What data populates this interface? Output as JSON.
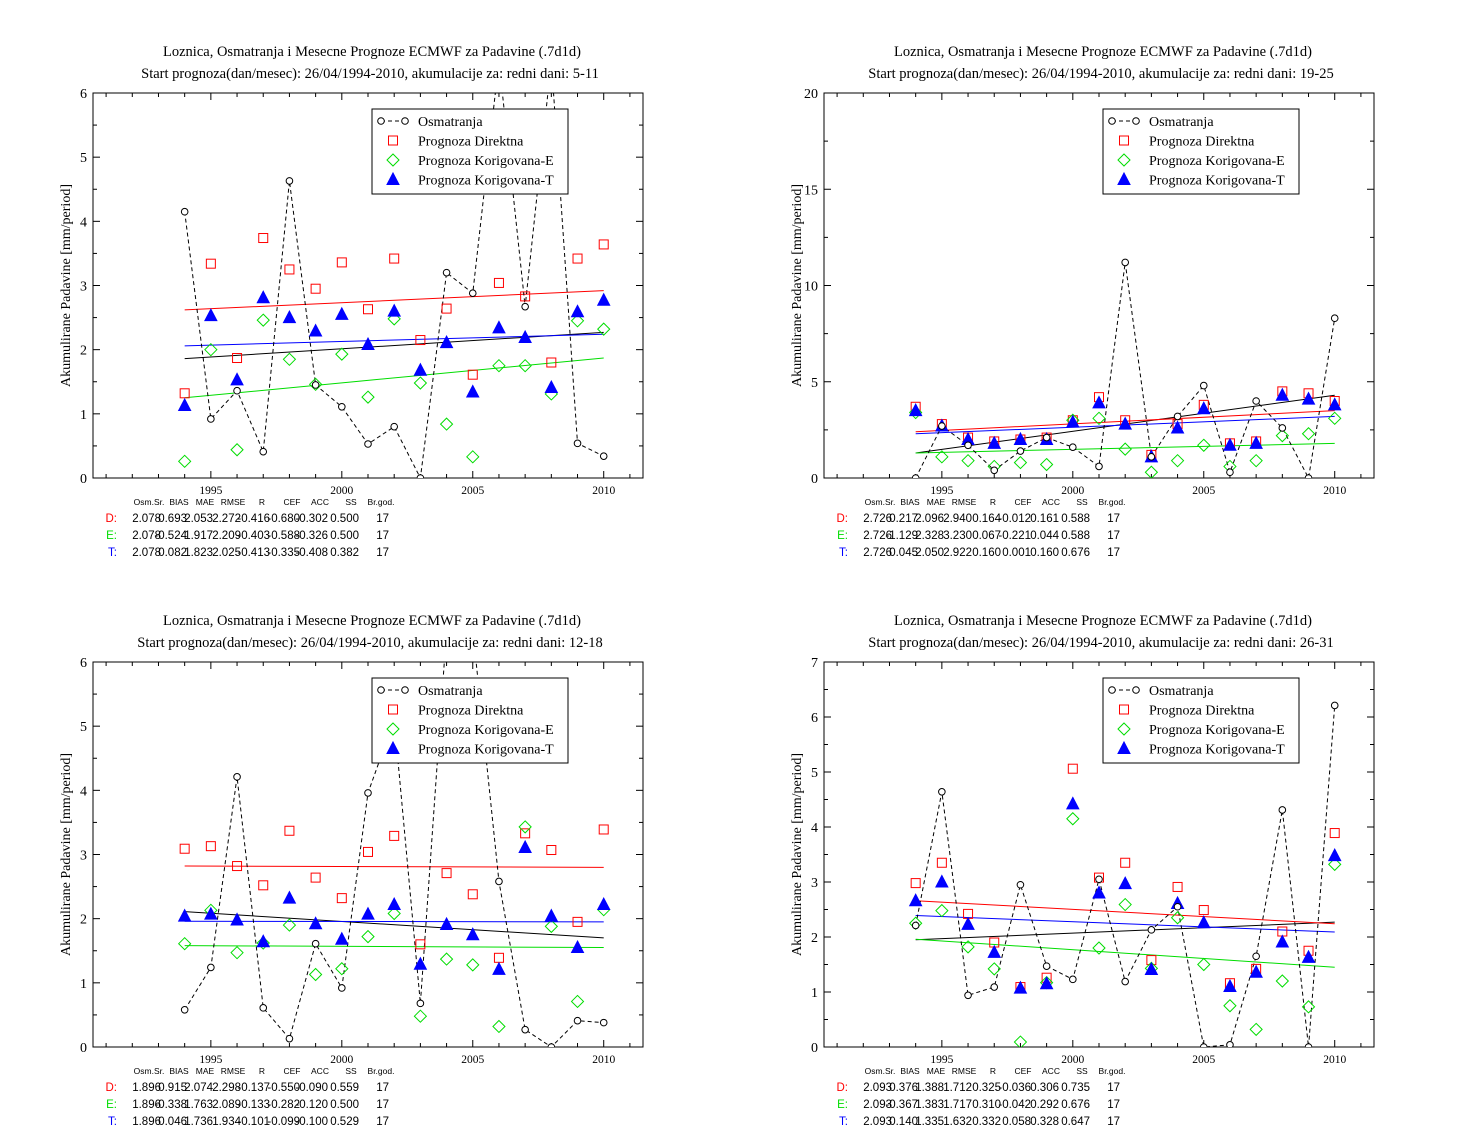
{
  "legend": {
    "obs": "Osmatranja",
    "direct": "Prognoza Direktna",
    "corrE": "Prognoza Korigovana-E",
    "corrT": "Prognoza Korigovana-T"
  },
  "colors": {
    "obs": "#000000",
    "direct": "#ff0000",
    "corrE": "#00dd00",
    "corrT": "#0000ff"
  },
  "stats_headers": [
    "Osm.Sr.",
    "BIAS",
    "MAE",
    "RMSE",
    "R",
    "CEF",
    "ACC",
    "SS",
    "Br.god."
  ],
  "chart_data": [
    {
      "type": "scatter",
      "title": "Loznica, Osmatranja i Mesecne Prognoze ECMWF za Padavine (.7d1d)",
      "subtitle": "Start prognoza(dan/mesec): 26/04/1994-2010, akumulacije za: redni dani: 5-11",
      "ylabel": "Akumulirane Padavine [mm/period]",
      "xlim": [
        1990.5,
        2011.5
      ],
      "ylim": [
        0,
        6
      ],
      "xticks": [
        1995,
        2000,
        2005,
        2010
      ],
      "yticks": [
        0,
        1,
        2,
        3,
        4,
        5,
        6
      ],
      "legend_position": "top-right",
      "x": [
        1994,
        1995,
        1996,
        1997,
        1998,
        1999,
        2000,
        2001,
        2002,
        2003,
        2004,
        2005,
        2006,
        2007,
        2008,
        2009,
        2010
      ],
      "series": [
        {
          "name": "Osmatranja",
          "key": "obs",
          "values": [
            4.15,
            0.92,
            1.36,
            0.41,
            4.63,
            1.45,
            1.11,
            0.53,
            0.8,
            0.0,
            3.2,
            2.88,
            6.5,
            2.67,
            6.5,
            0.54,
            0.34
          ]
        },
        {
          "name": "Prognoza Direktna",
          "key": "direct",
          "values": [
            1.32,
            3.34,
            1.87,
            3.74,
            3.25,
            2.95,
            3.36,
            2.63,
            3.42,
            2.15,
            2.64,
            1.61,
            3.04,
            2.83,
            1.8,
            3.42,
            3.64
          ]
        },
        {
          "name": "Prognoza Korigovana-E",
          "key": "corrE",
          "values": [
            0.26,
            2.0,
            0.44,
            2.46,
            1.85,
            1.46,
            1.93,
            1.26,
            2.48,
            1.48,
            0.84,
            0.33,
            1.75,
            1.75,
            1.31,
            2.45,
            2.32
          ]
        },
        {
          "name": "Prognoza Korigovana-T",
          "key": "corrT",
          "values": [
            1.13,
            2.53,
            1.53,
            2.81,
            2.5,
            2.29,
            2.55,
            2.08,
            2.6,
            1.68,
            2.11,
            1.34,
            2.34,
            2.19,
            1.41,
            2.59,
            2.77
          ]
        }
      ],
      "trends": [
        {
          "key": "obs",
          "y": [
            1.86,
            2.27
          ]
        },
        {
          "key": "direct",
          "y": [
            2.62,
            2.92
          ]
        },
        {
          "key": "corrE",
          "y": [
            1.25,
            1.87
          ]
        },
        {
          "key": "corrT",
          "y": [
            2.06,
            2.24
          ]
        }
      ],
      "stats": [
        {
          "label": "D:",
          "key": "direct",
          "values": [
            "2.078",
            "0.693",
            "2.053",
            "2.272",
            "-0.416",
            "-0.680",
            "-0.302",
            "0.500",
            "17"
          ]
        },
        {
          "label": "E:",
          "key": "corrE",
          "values": [
            "2.078",
            "-0.524",
            "1.917",
            "2.209",
            "-0.403",
            "-0.588",
            "-0.326",
            "0.500",
            "17"
          ]
        },
        {
          "label": "T:",
          "key": "corrT",
          "values": [
            "2.078",
            "0.082",
            "1.823",
            "2.025",
            "-0.413",
            "-0.335",
            "-0.408",
            "0.382",
            "17"
          ]
        }
      ]
    },
    {
      "type": "scatter",
      "title": "Loznica, Osmatranja i Mesecne Prognoze ECMWF za Padavine (.7d1d)",
      "subtitle": "Start prognoza(dan/mesec): 26/04/1994-2010, akumulacije za: redni dani: 19-25",
      "ylabel": "Akumulirane Padavine [mm/period]",
      "xlim": [
        1990.5,
        2011.5
      ],
      "ylim": [
        0,
        20
      ],
      "xticks": [
        1995,
        2000,
        2005,
        2010
      ],
      "yticks": [
        0,
        5,
        10,
        15,
        20
      ],
      "legend_position": "top-right",
      "x": [
        1994,
        1995,
        1996,
        1997,
        1998,
        1999,
        2000,
        2001,
        2002,
        2003,
        2004,
        2005,
        2006,
        2007,
        2008,
        2009,
        2010
      ],
      "series": [
        {
          "name": "Osmatranja",
          "key": "obs",
          "values": [
            0.0,
            2.7,
            1.7,
            0.4,
            1.4,
            2.1,
            1.6,
            0.6,
            11.2,
            1.1,
            3.2,
            4.8,
            0.3,
            4.0,
            2.6,
            0.0,
            8.3
          ]
        },
        {
          "name": "Prognoza Direktna",
          "key": "direct",
          "values": [
            3.7,
            2.8,
            2.1,
            1.9,
            2.0,
            2.1,
            3.0,
            4.2,
            3.0,
            1.2,
            2.8,
            3.8,
            1.8,
            1.9,
            4.5,
            4.4,
            4.0
          ]
        },
        {
          "name": "Prognoza Korigovana-E",
          "key": "corrE",
          "values": [
            3.4,
            1.1,
            0.9,
            0.6,
            0.8,
            0.7,
            3.0,
            3.1,
            1.5,
            0.3,
            0.9,
            1.7,
            0.6,
            0.9,
            2.2,
            2.3,
            3.1
          ]
        },
        {
          "name": "Prognoza Korigovana-T",
          "key": "corrT",
          "values": [
            3.5,
            2.7,
            2.0,
            1.8,
            2.0,
            2.0,
            2.9,
            3.9,
            2.8,
            1.1,
            2.6,
            3.6,
            1.7,
            1.8,
            4.3,
            4.1,
            3.8
          ]
        }
      ],
      "trends": [
        {
          "key": "obs",
          "y": [
            1.3,
            4.3
          ]
        },
        {
          "key": "direct",
          "y": [
            2.4,
            3.5
          ]
        },
        {
          "key": "corrE",
          "y": [
            1.3,
            1.8
          ]
        },
        {
          "key": "corrT",
          "y": [
            2.3,
            3.2
          ]
        }
      ],
      "stats": [
        {
          "label": "D:",
          "key": "direct",
          "values": [
            "2.726",
            "0.217",
            "2.096",
            "2.940",
            "0.164",
            "-0.012",
            "0.161",
            "0.588",
            "17"
          ]
        },
        {
          "label": "E:",
          "key": "corrE",
          "values": [
            "2.726",
            "-1.129",
            "2.328",
            "3.230",
            "0.067",
            "-0.221",
            "0.044",
            "0.588",
            "17"
          ]
        },
        {
          "label": "T:",
          "key": "corrT",
          "values": [
            "2.726",
            "0.045",
            "2.050",
            "2.922",
            "0.160",
            "0.001",
            "0.160",
            "0.676",
            "17"
          ]
        }
      ]
    },
    {
      "type": "scatter",
      "title": "Loznica, Osmatranja i Mesecne Prognoze ECMWF za Padavine (.7d1d)",
      "subtitle": "Start prognoza(dan/mesec): 26/04/1994-2010, akumulacije za: redni dani: 12-18",
      "ylabel": "Akumulirane Padavine [mm/period]",
      "xlim": [
        1990.5,
        2011.5
      ],
      "ylim": [
        0,
        6
      ],
      "xticks": [
        1995,
        2000,
        2005,
        2010
      ],
      "yticks": [
        0,
        1,
        2,
        3,
        4,
        5,
        6
      ],
      "legend_position": "top-right",
      "x": [
        1994,
        1995,
        1996,
        1997,
        1998,
        1999,
        2000,
        2001,
        2002,
        2003,
        2004,
        2005,
        2006,
        2007,
        2008,
        2009,
        2010
      ],
      "series": [
        {
          "name": "Osmatranja",
          "key": "obs",
          "values": [
            0.58,
            1.24,
            4.21,
            0.61,
            0.13,
            1.61,
            0.92,
            3.96,
            5.1,
            0.68,
            6.5,
            6.5,
            2.58,
            0.27,
            0.0,
            0.41,
            0.38
          ]
        },
        {
          "name": "Prognoza Direktna",
          "key": "direct",
          "values": [
            3.09,
            3.13,
            2.82,
            2.52,
            3.37,
            2.64,
            2.32,
            3.04,
            3.29,
            1.6,
            2.71,
            2.38,
            1.39,
            3.33,
            3.07,
            1.95,
            3.39
          ]
        },
        {
          "name": "Prognoza Korigovana-E",
          "key": "corrE",
          "values": [
            1.61,
            2.13,
            1.47,
            1.62,
            1.9,
            1.13,
            1.22,
            1.72,
            2.08,
            0.48,
            1.37,
            1.28,
            0.32,
            3.43,
            1.88,
            0.71,
            2.14
          ]
        },
        {
          "name": "Prognoza Korigovana-T",
          "key": "corrT",
          "values": [
            2.04,
            2.07,
            1.98,
            1.64,
            2.32,
            1.92,
            1.68,
            2.07,
            2.22,
            1.29,
            1.91,
            1.75,
            1.21,
            3.11,
            2.04,
            1.55,
            2.22
          ]
        }
      ],
      "trends": [
        {
          "key": "obs",
          "y": [
            2.11,
            1.7
          ]
        },
        {
          "key": "direct",
          "y": [
            2.82,
            2.8
          ]
        },
        {
          "key": "corrE",
          "y": [
            1.58,
            1.55
          ]
        },
        {
          "key": "corrT",
          "y": [
            1.96,
            1.95
          ]
        }
      ],
      "stats": [
        {
          "label": "D:",
          "key": "direct",
          "values": [
            "1.896",
            "0.915",
            "2.074",
            "2.298",
            "-0.137",
            "-0.550",
            "-0.090",
            "0.559",
            "17"
          ]
        },
        {
          "label": "E:",
          "key": "corrE",
          "values": [
            "1.896",
            "-0.338",
            "1.763",
            "2.089",
            "-0.133",
            "-0.282",
            "-0.120",
            "0.500",
            "17"
          ]
        },
        {
          "label": "T:",
          "key": "corrT",
          "values": [
            "1.896",
            "0.046",
            "1.736",
            "1.934",
            "-0.101",
            "-0.099",
            "-0.100",
            "0.529",
            "17"
          ]
        }
      ]
    },
    {
      "type": "scatter",
      "title": "Loznica, Osmatranja i Mesecne Prognoze ECMWF za Padavine (.7d1d)",
      "subtitle": "Start prognoza(dan/mesec): 26/04/1994-2010, akumulacije za: redni dani: 26-31",
      "ylabel": "Akumulirane Padavine [mm/period]",
      "xlim": [
        1990.5,
        2011.5
      ],
      "ylim": [
        0,
        7
      ],
      "xticks": [
        1995,
        2000,
        2005,
        2010
      ],
      "yticks": [
        0,
        1,
        2,
        3,
        4,
        5,
        6,
        7
      ],
      "legend_position": "top-right",
      "x": [
        1994,
        1995,
        1996,
        1997,
        1998,
        1999,
        2000,
        2001,
        2002,
        2003,
        2004,
        2005,
        2006,
        2007,
        2008,
        2009,
        2010
      ],
      "series": [
        {
          "name": "Osmatranja",
          "key": "obs",
          "values": [
            2.21,
            4.64,
            0.94,
            1.09,
            2.95,
            1.47,
            1.23,
            3.05,
            1.19,
            2.13,
            2.55,
            0.0,
            0.04,
            1.65,
            4.31,
            0.0,
            6.21
          ]
        },
        {
          "name": "Prognoza Direktna",
          "key": "direct",
          "values": [
            2.98,
            3.35,
            2.42,
            1.9,
            1.09,
            1.26,
            5.06,
            3.08,
            3.35,
            1.58,
            2.91,
            2.49,
            1.16,
            1.42,
            2.1,
            1.75,
            3.89
          ]
        },
        {
          "name": "Prognoza Korigovana-E",
          "key": "corrE",
          "values": [
            2.25,
            2.48,
            1.82,
            1.42,
            0.09,
            1.17,
            4.15,
            1.8,
            2.59,
            1.43,
            2.35,
            1.5,
            0.75,
            0.32,
            1.2,
            0.73,
            3.32
          ]
        },
        {
          "name": "Prognoza Korigovana-T",
          "key": "corrT",
          "values": [
            2.66,
            3.0,
            2.23,
            1.72,
            1.07,
            1.15,
            4.42,
            2.8,
            2.97,
            1.41,
            2.61,
            2.26,
            1.1,
            1.36,
            1.91,
            1.63,
            3.48
          ]
        }
      ],
      "trends": [
        {
          "key": "obs",
          "y": [
            1.95,
            2.27
          ]
        },
        {
          "key": "direct",
          "y": [
            2.66,
            2.24
          ]
        },
        {
          "key": "corrE",
          "y": [
            1.96,
            1.45
          ]
        },
        {
          "key": "corrT",
          "y": [
            2.39,
            2.09
          ]
        }
      ],
      "stats": [
        {
          "label": "D:",
          "key": "direct",
          "values": [
            "2.093",
            "0.376",
            "1.388",
            "1.712",
            "0.325",
            "-0.036",
            "0.306",
            "0.735",
            "17"
          ]
        },
        {
          "label": "E:",
          "key": "corrE",
          "values": [
            "2.093",
            "-0.367",
            "1.383",
            "1.717",
            "0.310",
            "-0.042",
            "0.292",
            "0.676",
            "17"
          ]
        },
        {
          "label": "T:",
          "key": "corrT",
          "values": [
            "2.093",
            "0.140",
            "1.335",
            "1.632",
            "0.332",
            "0.058",
            "0.328",
            "0.647",
            "17"
          ]
        }
      ]
    }
  ]
}
